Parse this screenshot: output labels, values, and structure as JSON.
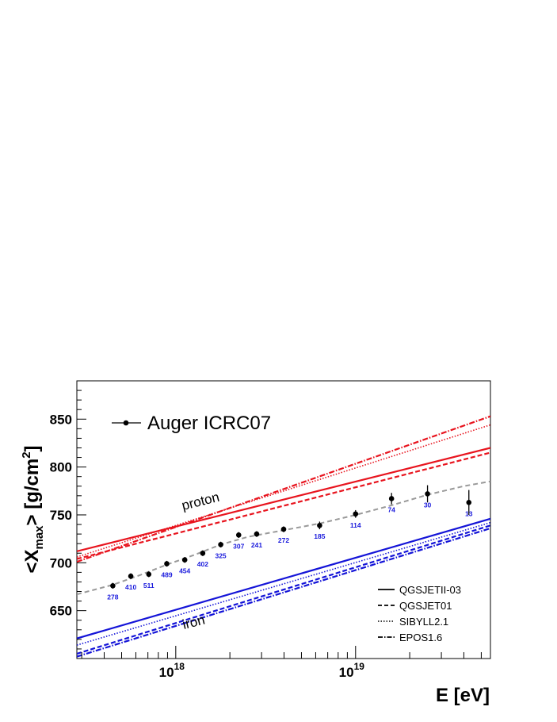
{
  "chart_data": {
    "type": "line",
    "title": "",
    "xlabel": "E [eV]",
    "ylabel_main": "<X",
    "ylabel_sub": "max",
    "ylabel_tail": "> [g/cm",
    "ylabel_sup": "2",
    "ylabel_end": "]",
    "xscale": "log",
    "xlim_log10": [
      17.45,
      19.75
    ],
    "ylim": [
      600,
      890
    ],
    "x_ticks": [
      {
        "log10": 18,
        "base": "10",
        "exp": "18"
      },
      {
        "log10": 19,
        "base": "10",
        "exp": "19"
      }
    ],
    "y_ticks": [
      650,
      700,
      750,
      800,
      850
    ],
    "data_series": {
      "name": "Auger ICRC07",
      "points": [
        {
          "log10E": 17.65,
          "y": 676,
          "err": 3,
          "n": "278"
        },
        {
          "log10E": 17.75,
          "y": 686,
          "err": 3,
          "n": "410"
        },
        {
          "log10E": 17.85,
          "y": 688,
          "err": 3,
          "n": "511"
        },
        {
          "log10E": 17.95,
          "y": 699,
          "err": 3,
          "n": "489"
        },
        {
          "log10E": 18.05,
          "y": 703,
          "err": 3,
          "n": "454"
        },
        {
          "log10E": 18.15,
          "y": 710,
          "err": 3,
          "n": "402"
        },
        {
          "log10E": 18.25,
          "y": 719,
          "err": 3,
          "n": "325"
        },
        {
          "log10E": 18.35,
          "y": 729,
          "err": 3,
          "n": "307"
        },
        {
          "log10E": 18.45,
          "y": 730,
          "err": 3,
          "n": "241"
        },
        {
          "log10E": 18.6,
          "y": 735,
          "err": 3,
          "n": "272"
        },
        {
          "log10E": 18.8,
          "y": 739,
          "err": 4,
          "n": "185"
        },
        {
          "log10E": 19.0,
          "y": 751,
          "err": 4,
          "n": "114"
        },
        {
          "log10E": 19.2,
          "y": 767,
          "err": 6,
          "n": "74"
        },
        {
          "log10E": 19.4,
          "y": 772,
          "err": 9,
          "n": "30"
        },
        {
          "log10E": 19.63,
          "y": 763,
          "err": 13,
          "n": "13"
        }
      ]
    },
    "fit_curve": [
      {
        "log10E": 17.45,
        "y": 667
      },
      {
        "log10E": 17.65,
        "y": 677
      },
      {
        "log10E": 17.8,
        "y": 687
      },
      {
        "log10E": 17.95,
        "y": 698
      },
      {
        "log10E": 18.1,
        "y": 708
      },
      {
        "log10E": 18.25,
        "y": 719
      },
      {
        "log10E": 18.4,
        "y": 727
      },
      {
        "log10E": 18.6,
        "y": 734
      },
      {
        "log10E": 18.8,
        "y": 741
      },
      {
        "log10E": 19.0,
        "y": 750
      },
      {
        "log10E": 19.2,
        "y": 760
      },
      {
        "log10E": 19.4,
        "y": 771
      },
      {
        "log10E": 19.6,
        "y": 780
      },
      {
        "log10E": 19.75,
        "y": 785
      }
    ],
    "models": [
      {
        "name": "QGSJETII-03",
        "style": "solid",
        "proton": [
          712,
          820
        ],
        "iron": [
          621,
          746
        ]
      },
      {
        "name": "QGSJET01",
        "style": "dashed",
        "proton": [
          704,
          815
        ],
        "iron": [
          605,
          739
        ]
      },
      {
        "name": "SIBYLL2.1",
        "style": "dotted",
        "proton": [
          706,
          844
        ],
        "iron": [
          614,
          742
        ]
      },
      {
        "name": "EPOS1.6",
        "style": "dashdot",
        "proton": [
          701,
          853
        ],
        "iron": [
          602,
          736
        ]
      }
    ],
    "annotations": {
      "proton": "proton",
      "iron": "iron"
    },
    "colors": {
      "proton": "#e8141e",
      "iron": "#1414d8",
      "fit": "#9a9a9a",
      "data": "#000000",
      "counts": "#1a1adc"
    }
  }
}
